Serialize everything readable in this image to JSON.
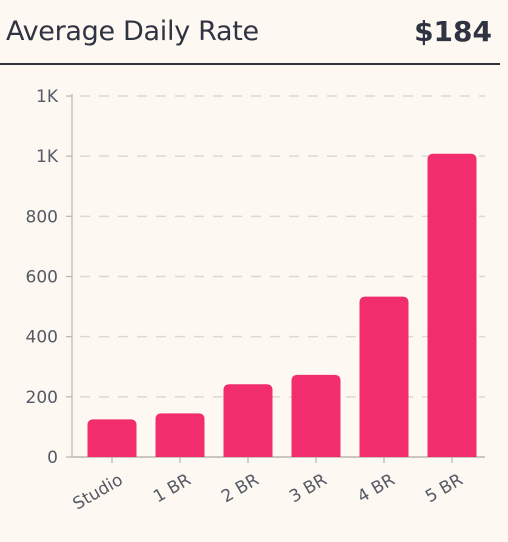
{
  "header": {
    "title": "Average Daily Rate",
    "value": "$184"
  },
  "colors": {
    "bar": "#f22d6d",
    "grid": "#dcd8d2",
    "axis": "#b9b6b0"
  },
  "chart_data": {
    "type": "bar",
    "categories": [
      "Studio",
      "1 BR",
      "2 BR",
      "3 BR",
      "4 BR",
      "5 BR"
    ],
    "values": [
      125,
      145,
      242,
      273,
      533,
      1008
    ],
    "ylim": [
      0,
      1200
    ],
    "yticks": [
      0,
      200,
      400,
      600,
      800,
      1000,
      1200
    ],
    "ytick_labels": [
      "0",
      "200",
      "400",
      "600",
      "800",
      "1K",
      "1K"
    ],
    "grid": true,
    "xlabel": "",
    "ylabel": ""
  }
}
